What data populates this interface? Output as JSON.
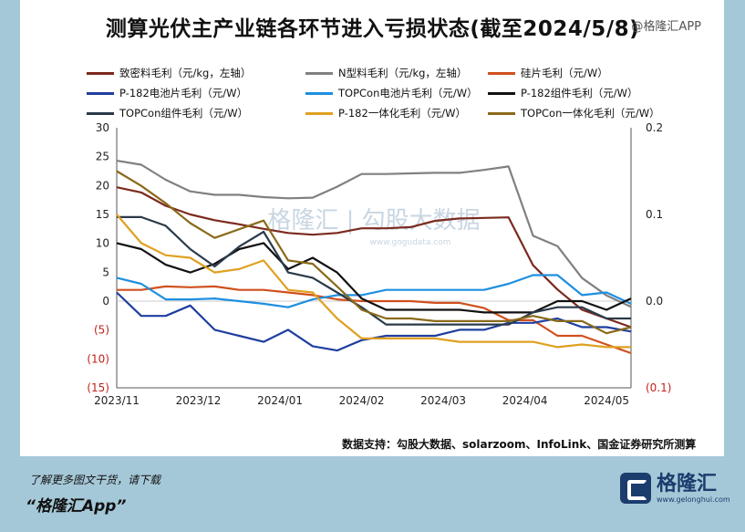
{
  "header": {
    "title": "测算光伏主产业链各环节进入亏损状态(截至2024/5/8)",
    "corner_tag": "@格隆汇APP"
  },
  "footer": {
    "source": "数据支持：勾股大数据、solarzoom、InfoLink、国金证券研究所测算",
    "note": "了解更多图文干货，请下载",
    "app": "“格隆汇App”",
    "logo_name": "格隆汇",
    "logo_url": "www.gelonghui.com"
  },
  "watermark": {
    "text": "格隆汇 | 勾股大数据",
    "url": "www.gogudata.com"
  },
  "chart_data": {
    "type": "line",
    "title": "测算光伏主产业链各环节进入亏损状态(截至2024/5/8)",
    "x": [
      "2023/11",
      "2023/12",
      "2024/01",
      "2024/02",
      "2024/03",
      "2024/04",
      "2024/05"
    ],
    "x_range": [
      0,
      6.3
    ],
    "y_left": {
      "range": [
        -15,
        30
      ],
      "ticks": [
        "30",
        "25",
        "20",
        "15",
        "10",
        "5",
        "0",
        "(5)",
        "(10)",
        "(15)"
      ]
    },
    "y_right": {
      "range": [
        -0.1,
        0.2
      ],
      "ticks": [
        "0.2",
        "0.1",
        "0.0",
        "(0.1)"
      ]
    },
    "grid": false,
    "legend_position": "top",
    "series": [
      {
        "name": "致密料毛利（元/kg，左轴）",
        "color": "#7b2a1e",
        "axis": "left",
        "x": [
          0,
          0.3,
          0.6,
          0.9,
          1.2,
          1.5,
          1.8,
          2.1,
          2.4,
          2.7,
          3.0,
          3.3,
          3.6,
          3.9,
          4.2,
          4.5,
          4.8,
          5.1,
          5.4,
          5.7,
          6.0,
          6.3
        ],
        "values": [
          19.7,
          18.8,
          16.5,
          15.0,
          14.0,
          13.3,
          12.5,
          11.8,
          11.5,
          11.8,
          12.6,
          12.6,
          12.8,
          13.9,
          14.3,
          14.4,
          14.5,
          6.2,
          2.0,
          -1.5,
          -3.0,
          -4.5
        ]
      },
      {
        "name": "N型料毛利（元/kg，左轴）",
        "color": "#808080",
        "axis": "left",
        "x": [
          0,
          0.3,
          0.6,
          0.9,
          1.2,
          1.5,
          1.8,
          2.1,
          2.4,
          2.7,
          3.0,
          3.3,
          3.6,
          3.9,
          4.2,
          4.5,
          4.8,
          5.1,
          5.4,
          5.7,
          6.0,
          6.3
        ],
        "values": [
          24.3,
          23.6,
          21.0,
          19.0,
          18.4,
          18.4,
          18.0,
          17.8,
          17.9,
          19.8,
          22.0,
          22.0,
          22.1,
          22.2,
          22.2,
          22.7,
          23.3,
          11.3,
          9.5,
          4.0,
          1.0,
          -1.0
        ]
      },
      {
        "name": "硅片毛利（元/W）",
        "color": "#d0501e",
        "axis": "right",
        "x": [
          0,
          0.3,
          0.6,
          0.9,
          1.2,
          1.5,
          1.8,
          2.1,
          2.4,
          2.7,
          3.0,
          3.3,
          3.6,
          3.9,
          4.2,
          4.5,
          4.8,
          5.1,
          5.4,
          5.7,
          6.0,
          6.3
        ],
        "values": [
          0.013,
          0.013,
          0.017,
          0.016,
          0.017,
          0.013,
          0.013,
          0.01,
          0.007,
          0.002,
          0.0,
          0.0,
          0.0,
          -0.002,
          -0.002,
          -0.008,
          -0.022,
          -0.022,
          -0.04,
          -0.04,
          -0.05,
          -0.06
        ]
      },
      {
        "name": "P-182电池片毛利（元/W）",
        "color": "#1f3f9e",
        "axis": "right",
        "x": [
          0,
          0.3,
          0.6,
          0.9,
          1.2,
          1.5,
          1.8,
          2.1,
          2.4,
          2.7,
          3.0,
          3.3,
          3.6,
          3.9,
          4.2,
          4.5,
          4.8,
          5.1,
          5.4,
          5.7,
          6.0,
          6.3
        ],
        "values": [
          0.01,
          -0.017,
          -0.017,
          -0.005,
          -0.033,
          -0.04,
          -0.047,
          -0.033,
          -0.052,
          -0.057,
          -0.045,
          -0.04,
          -0.04,
          -0.04,
          -0.033,
          -0.033,
          -0.025,
          -0.025,
          -0.02,
          -0.03,
          -0.03,
          -0.035
        ]
      },
      {
        "name": "TOPCon电池片毛利（元/W）",
        "color": "#1e8fe0",
        "axis": "right",
        "x": [
          0,
          0.3,
          0.6,
          0.9,
          1.2,
          1.5,
          1.8,
          2.1,
          2.4,
          2.7,
          3.0,
          3.3,
          3.6,
          3.9,
          4.2,
          4.5,
          4.8,
          5.1,
          5.4,
          5.7,
          6.0,
          6.3
        ],
        "values": [
          0.027,
          0.02,
          0.002,
          0.002,
          0.003,
          0.0,
          -0.003,
          -0.007,
          0.002,
          0.007,
          0.007,
          0.013,
          0.013,
          0.013,
          0.013,
          0.013,
          0.02,
          0.03,
          0.03,
          0.007,
          0.01,
          -0.003
        ]
      },
      {
        "name": "P-182组件毛利（元/W）",
        "color": "#111111",
        "axis": "right",
        "x": [
          0,
          0.3,
          0.6,
          0.9,
          1.2,
          1.5,
          1.8,
          2.1,
          2.4,
          2.7,
          3.0,
          3.3,
          3.6,
          3.9,
          4.2,
          4.5,
          4.8,
          5.1,
          5.4,
          5.7,
          6.0,
          6.3
        ],
        "values": [
          0.067,
          0.06,
          0.042,
          0.033,
          0.043,
          0.06,
          0.067,
          0.037,
          0.05,
          0.033,
          0.003,
          -0.01,
          -0.01,
          -0.01,
          -0.01,
          -0.013,
          -0.013,
          -0.013,
          0.0,
          0.0,
          -0.01,
          0.003
        ]
      },
      {
        "name": "TOPCon组件毛利（元/W）",
        "color": "#2b3a4a",
        "axis": "right",
        "x": [
          0,
          0.3,
          0.6,
          0.9,
          1.2,
          1.5,
          1.8,
          2.1,
          2.4,
          2.7,
          3.0,
          3.3,
          3.6,
          3.9,
          4.2,
          4.5,
          4.8,
          5.1,
          5.4,
          5.7,
          6.0,
          6.3
        ],
        "values": [
          0.097,
          0.097,
          0.087,
          0.06,
          0.04,
          0.063,
          0.08,
          0.033,
          0.027,
          0.01,
          -0.007,
          -0.027,
          -0.027,
          -0.027,
          -0.027,
          -0.027,
          -0.027,
          -0.013,
          -0.007,
          -0.007,
          -0.02,
          -0.02
        ]
      },
      {
        "name": "P-182一体化毛利（元/W）",
        "color": "#e0a020",
        "axis": "right",
        "x": [
          0,
          0.3,
          0.6,
          0.9,
          1.2,
          1.5,
          1.8,
          2.1,
          2.4,
          2.7,
          3.0,
          3.3,
          3.6,
          3.9,
          4.2,
          4.5,
          4.8,
          5.1,
          5.4,
          5.7,
          6.0,
          6.3
        ],
        "values": [
          0.1,
          0.067,
          0.053,
          0.05,
          0.033,
          0.037,
          0.047,
          0.013,
          0.01,
          -0.02,
          -0.043,
          -0.043,
          -0.043,
          -0.043,
          -0.047,
          -0.047,
          -0.047,
          -0.047,
          -0.053,
          -0.05,
          -0.053,
          -0.053
        ]
      },
      {
        "name": "TOPCon一体化毛利（元/W）",
        "color": "#8a6a1a",
        "axis": "right",
        "x": [
          0,
          0.3,
          0.6,
          0.9,
          1.2,
          1.5,
          1.8,
          2.1,
          2.4,
          2.7,
          3.0,
          3.3,
          3.6,
          3.9,
          4.2,
          4.5,
          4.8,
          5.1,
          5.4,
          5.7,
          6.0,
          6.3
        ],
        "values": [
          0.15,
          0.133,
          0.113,
          0.09,
          0.073,
          0.083,
          0.093,
          0.047,
          0.043,
          0.017,
          -0.01,
          -0.02,
          -0.02,
          -0.023,
          -0.023,
          -0.023,
          -0.023,
          -0.017,
          -0.023,
          -0.023,
          -0.037,
          -0.03
        ]
      }
    ]
  }
}
